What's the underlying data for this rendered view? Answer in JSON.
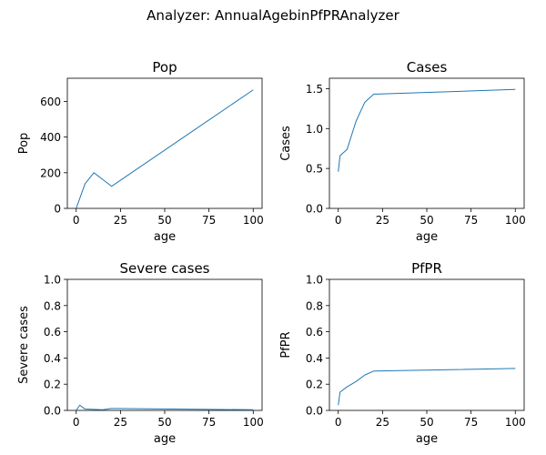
{
  "figure": {
    "suptitle": "Analyzer: AnnualAgebinPfPRAnalyzer"
  },
  "chart_data": [
    {
      "type": "line",
      "title": "Pop",
      "xlabel": "age",
      "ylabel": "Pop",
      "xlim": [
        -5,
        105
      ],
      "ylim": [
        0,
        730
      ],
      "xticks": [
        0,
        25,
        50,
        75,
        100
      ],
      "yticks": [
        0,
        200,
        400,
        600
      ],
      "ytick_labels": [
        "0",
        "200",
        "400",
        "600"
      ],
      "x": [
        0,
        5,
        10,
        15,
        20,
        100
      ],
      "y": [
        0,
        138,
        200,
        162,
        124,
        665
      ],
      "color": "#1f77b4"
    },
    {
      "type": "line",
      "title": "Cases",
      "xlabel": "age",
      "ylabel": "Cases",
      "xlim": [
        -5,
        105
      ],
      "ylim": [
        0,
        1.63
      ],
      "xticks": [
        0,
        25,
        50,
        75,
        100
      ],
      "yticks": [
        0,
        0.5,
        1.0,
        1.5
      ],
      "ytick_labels": [
        "0.0",
        "0.5",
        "1.0",
        "1.5"
      ],
      "x": [
        0,
        1,
        5,
        10,
        15,
        20,
        100
      ],
      "y": [
        0.46,
        0.66,
        0.74,
        1.09,
        1.33,
        1.43,
        1.49
      ],
      "color": "#1f77b4"
    },
    {
      "type": "line",
      "title": "Severe cases",
      "xlabel": "age",
      "ylabel": "Severe cases",
      "xlim": [
        -5,
        105
      ],
      "ylim": [
        0,
        1.0
      ],
      "xticks": [
        0,
        25,
        50,
        75,
        100
      ],
      "yticks": [
        0,
        0.2,
        0.4,
        0.6,
        0.8,
        1.0
      ],
      "ytick_labels": [
        "0.0",
        "0.2",
        "0.4",
        "0.6",
        "0.8",
        "1.0"
      ],
      "x": [
        0,
        2,
        5,
        10,
        15,
        20,
        100
      ],
      "y": [
        0.0,
        0.04,
        0.01,
        0.008,
        0.005,
        0.015,
        0.005
      ],
      "color": "#1f77b4"
    },
    {
      "type": "line",
      "title": "PfPR",
      "xlabel": "age",
      "ylabel": "PfPR",
      "xlim": [
        -5,
        105
      ],
      "ylim": [
        0,
        1.0
      ],
      "xticks": [
        0,
        25,
        50,
        75,
        100
      ],
      "yticks": [
        0,
        0.2,
        0.4,
        0.6,
        0.8,
        1.0
      ],
      "ytick_labels": [
        "0.0",
        "0.2",
        "0.4",
        "0.6",
        "0.8",
        "1.0"
      ],
      "x": [
        0,
        1,
        5,
        10,
        15,
        20,
        100
      ],
      "y": [
        0.04,
        0.14,
        0.18,
        0.22,
        0.27,
        0.3,
        0.32
      ],
      "color": "#1f77b4"
    }
  ]
}
